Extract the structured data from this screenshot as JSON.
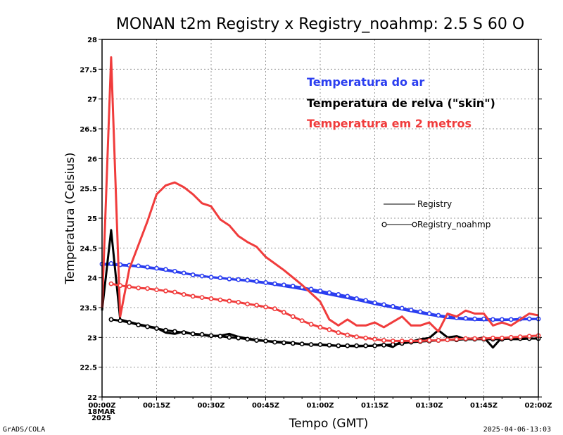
{
  "chart_data": {
    "type": "line",
    "title": "MONAN t2m Registry x Registry_noahmp: 2.5 S 60 O",
    "xlabel": "Tempo (GMT)",
    "ylabel": "Temperatura (Celsius)",
    "ylim": [
      22,
      28
    ],
    "yticks": [
      "22",
      "22.5",
      "23",
      "23.5",
      "24",
      "24.5",
      "25",
      "25.5",
      "26",
      "26.5",
      "27",
      "27.5",
      "28"
    ],
    "xlim_minutes": [
      0,
      120
    ],
    "xticks": [
      {
        "minute": 0,
        "label": "00:00Z",
        "sub1": "18MAR",
        "sub2": "2025"
      },
      {
        "minute": 15,
        "label": "00:15Z"
      },
      {
        "minute": 30,
        "label": "00:30Z"
      },
      {
        "minute": 45,
        "label": "00:45Z"
      },
      {
        "minute": 60,
        "label": "01:00Z"
      },
      {
        "minute": 75,
        "label": "01:15Z"
      },
      {
        "minute": 90,
        "label": "01:30Z"
      },
      {
        "minute": 105,
        "label": "01:45Z"
      },
      {
        "minute": 120,
        "label": "02:00Z"
      }
    ],
    "grid": true,
    "legend_variables": [
      {
        "name": "Temperatura do ar",
        "color": "#2b3ef0"
      },
      {
        "name": "Temperatura de relva (\"skin\")",
        "color": "#000000"
      },
      {
        "name": "Temperatura em 2 metros",
        "color": "#f03c3c"
      }
    ],
    "legend_style": [
      {
        "name": "Registry",
        "marker": "none"
      },
      {
        "name": "Registry_noahmp",
        "marker": "circle"
      }
    ],
    "series": [
      {
        "variable": "Temperatura do ar",
        "run": "Registry",
        "color": "#2b3ef0",
        "marker": false,
        "x": [
          0,
          2,
          5,
          8,
          10,
          15,
          20,
          25,
          30,
          35,
          40,
          45,
          50,
          55,
          60,
          65,
          70,
          75,
          80,
          85,
          90,
          95,
          100,
          105,
          110,
          115,
          120
        ],
        "y": [
          24.22,
          24.22,
          24.21,
          24.2,
          24.19,
          24.15,
          24.1,
          24.05,
          24.01,
          23.98,
          23.95,
          23.91,
          23.86,
          23.81,
          23.75,
          23.69,
          23.63,
          23.56,
          23.5,
          23.44,
          23.38,
          23.33,
          23.3,
          23.29,
          23.29,
          23.3,
          23.31
        ]
      },
      {
        "variable": "Temperatura do ar",
        "run": "Registry_noahmp",
        "color": "#2b3ef0",
        "marker": true,
        "x": [
          0,
          2.5,
          5,
          7.5,
          10,
          12.5,
          15,
          17.5,
          20,
          22.5,
          25,
          27.5,
          30,
          32.5,
          35,
          37.5,
          40,
          42.5,
          45,
          47.5,
          50,
          52.5,
          55,
          57.5,
          60,
          62.5,
          65,
          67.5,
          70,
          72.5,
          75,
          77.5,
          80,
          82.5,
          85,
          87.5,
          90,
          92.5,
          95,
          97.5,
          100,
          102.5,
          105,
          107.5,
          110,
          112.5,
          115,
          117.5,
          120
        ],
        "y": [
          24.23,
          24.24,
          24.22,
          24.21,
          24.2,
          24.18,
          24.16,
          24.14,
          24.11,
          24.08,
          24.05,
          24.03,
          24.01,
          24.0,
          23.98,
          23.97,
          23.96,
          23.94,
          23.92,
          23.9,
          23.88,
          23.86,
          23.84,
          23.81,
          23.78,
          23.75,
          23.72,
          23.69,
          23.65,
          23.62,
          23.58,
          23.55,
          23.52,
          23.49,
          23.46,
          23.43,
          23.4,
          23.37,
          23.35,
          23.33,
          23.32,
          23.31,
          23.31,
          23.3,
          23.3,
          23.3,
          23.31,
          23.31,
          23.31
        ]
      },
      {
        "variable": "Temperatura de relva (\"skin\")",
        "run": "Registry",
        "color": "#000000",
        "marker": false,
        "x": [
          0,
          2.5,
          5,
          7.5,
          10,
          15,
          17.5,
          20,
          22.5,
          25,
          27.5,
          30,
          32.5,
          35,
          37.5,
          40,
          42.5,
          45,
          50,
          55,
          60,
          65,
          70,
          75,
          77.5,
          80,
          82.5,
          85,
          87.5,
          90,
          92.5,
          95,
          97.5,
          100,
          102.5,
          105,
          107.5,
          110,
          112.5,
          115,
          117.5,
          120
        ],
        "y": [
          23.45,
          24.8,
          23.3,
          23.26,
          23.22,
          23.16,
          23.08,
          23.06,
          23.1,
          23.05,
          23.04,
          23.02,
          23.03,
          23.06,
          23.01,
          22.98,
          22.96,
          22.94,
          22.92,
          22.89,
          22.87,
          22.86,
          22.85,
          22.86,
          22.88,
          22.84,
          22.94,
          22.93,
          22.97,
          22.99,
          23.12,
          23.0,
          23.02,
          22.97,
          22.97,
          23.0,
          22.83,
          23.0,
          22.97,
          22.97,
          22.98,
          22.98
        ]
      },
      {
        "variable": "Temperatura de relva (\"skin\")",
        "run": "Registry_noahmp",
        "color": "#000000",
        "marker": true,
        "x": [
          2.5,
          5,
          7.5,
          10,
          12.5,
          15,
          17.5,
          20,
          22.5,
          25,
          27.5,
          30,
          32.5,
          35,
          37.5,
          40,
          42.5,
          45,
          47.5,
          50,
          52.5,
          55,
          57.5,
          60,
          62.5,
          65,
          67.5,
          70,
          72.5,
          75,
          77.5,
          80,
          82.5,
          85,
          87.5,
          90,
          92.5,
          95,
          97.5,
          100,
          102.5,
          105,
          107.5,
          110,
          112.5,
          115,
          117.5,
          120
        ],
        "y": [
          23.3,
          23.28,
          23.25,
          23.21,
          23.18,
          23.15,
          23.12,
          23.1,
          23.08,
          23.06,
          23.05,
          23.03,
          23.02,
          23.0,
          22.99,
          22.97,
          22.95,
          22.94,
          22.92,
          22.91,
          22.9,
          22.89,
          22.88,
          22.88,
          22.87,
          22.86,
          22.86,
          22.86,
          22.86,
          22.86,
          22.87,
          22.88,
          22.9,
          22.92,
          22.93,
          22.94,
          22.95,
          22.96,
          22.96,
          22.97,
          22.97,
          22.97,
          22.97,
          22.97,
          22.98,
          22.98,
          22.98,
          22.98
        ]
      },
      {
        "variable": "Temperatura em 2 metros",
        "run": "Registry",
        "color": "#f03c3c",
        "marker": false,
        "x": [
          0,
          2.5,
          5,
          7.5,
          10,
          12.5,
          15,
          17.5,
          20,
          22.5,
          25,
          27.5,
          30,
          32.5,
          35,
          37.5,
          40,
          42.5,
          45,
          50,
          55,
          60,
          62.5,
          65,
          67.5,
          70,
          72.5,
          75,
          77.5,
          80,
          82.5,
          85,
          87.5,
          90,
          92.5,
          95,
          97.5,
          100,
          102.5,
          105,
          107.5,
          110,
          112.5,
          115,
          117.5,
          120
        ],
        "y": [
          23.5,
          27.7,
          23.35,
          24.15,
          24.55,
          24.95,
          25.4,
          25.55,
          25.6,
          25.52,
          25.4,
          25.25,
          25.2,
          24.98,
          24.88,
          24.7,
          24.6,
          24.52,
          24.35,
          24.13,
          23.88,
          23.6,
          23.3,
          23.2,
          23.3,
          23.2,
          23.2,
          23.25,
          23.17,
          23.26,
          23.35,
          23.2,
          23.2,
          23.25,
          23.1,
          23.4,
          23.35,
          23.45,
          23.4,
          23.4,
          23.2,
          23.25,
          23.2,
          23.3,
          23.4,
          23.37
        ]
      },
      {
        "variable": "Temperatura em 2 metros",
        "run": "Registry_noahmp",
        "color": "#f03c3c",
        "marker": true,
        "x": [
          2.5,
          5,
          7.5,
          10,
          12.5,
          15,
          17.5,
          20,
          22.5,
          25,
          27.5,
          30,
          32.5,
          35,
          37.5,
          40,
          42.5,
          45,
          47.5,
          50,
          52.5,
          55,
          57.5,
          60,
          62.5,
          65,
          67.5,
          70,
          72.5,
          75,
          77.5,
          80,
          82.5,
          85,
          87.5,
          90,
          92.5,
          95,
          97.5,
          100,
          102.5,
          105,
          107.5,
          110,
          112.5,
          115,
          117.5,
          120
        ],
        "y": [
          23.9,
          23.87,
          23.85,
          23.83,
          23.82,
          23.8,
          23.78,
          23.76,
          23.72,
          23.69,
          23.67,
          23.65,
          23.63,
          23.61,
          23.59,
          23.56,
          23.54,
          23.51,
          23.48,
          23.42,
          23.35,
          23.28,
          23.22,
          23.17,
          23.13,
          23.08,
          23.04,
          23.01,
          22.99,
          22.97,
          22.95,
          22.94,
          22.94,
          22.94,
          22.94,
          22.95,
          22.95,
          22.96,
          22.97,
          22.98,
          22.98,
          22.98,
          22.99,
          22.99,
          23.0,
          23.01,
          23.02,
          23.03
        ]
      }
    ]
  },
  "footer": {
    "left": "GrADS/COLA",
    "right": "2025-04-06-13:03"
  }
}
